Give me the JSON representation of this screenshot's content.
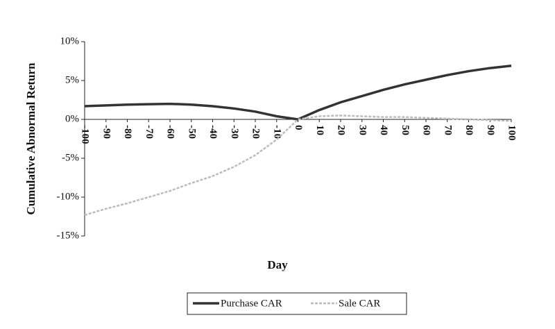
{
  "chart_data": {
    "type": "line",
    "x_label": "Day",
    "y_label": "Cumulative Abnormal Return",
    "x": [
      -100,
      -90,
      -80,
      -70,
      -60,
      -50,
      -40,
      -30,
      -20,
      -10,
      0,
      10,
      20,
      30,
      40,
      50,
      60,
      70,
      80,
      90,
      100
    ],
    "series": [
      {
        "name": "Purchase CAR",
        "color": "#333333",
        "values": [
          1.7,
          1.8,
          1.9,
          1.95,
          2.0,
          1.9,
          1.7,
          1.4,
          1.0,
          0.4,
          0,
          1.2,
          2.2,
          3.0,
          3.8,
          4.5,
          5.1,
          5.7,
          6.2,
          6.6,
          6.9
        ]
      },
      {
        "name": "Sale CAR",
        "color": "#bbbbbb",
        "values": [
          -12.3,
          -11.5,
          -10.8,
          -10.0,
          -9.2,
          -8.2,
          -7.3,
          -6.1,
          -4.6,
          -2.6,
          0,
          0.4,
          0.5,
          0.4,
          0.3,
          0.3,
          0.2,
          0.1,
          0.0,
          -0.1,
          -0.2
        ]
      }
    ],
    "xlim": [
      -100,
      100
    ],
    "xticks": [
      -100,
      -90,
      -80,
      -70,
      -60,
      -50,
      -40,
      -30,
      -20,
      -10,
      0,
      10,
      20,
      30,
      40,
      50,
      60,
      70,
      80,
      90,
      100
    ],
    "ylim": [
      -15,
      10
    ],
    "yticks": [
      {
        "value": 10,
        "label": "10%"
      },
      {
        "value": 5,
        "label": "5%"
      },
      {
        "value": 0,
        "label": "0%"
      },
      {
        "value": -5,
        "label": "-5%"
      },
      {
        "value": -10,
        "label": "-10%"
      },
      {
        "value": -15,
        "label": "-15%"
      }
    ],
    "legend": "bottom"
  }
}
